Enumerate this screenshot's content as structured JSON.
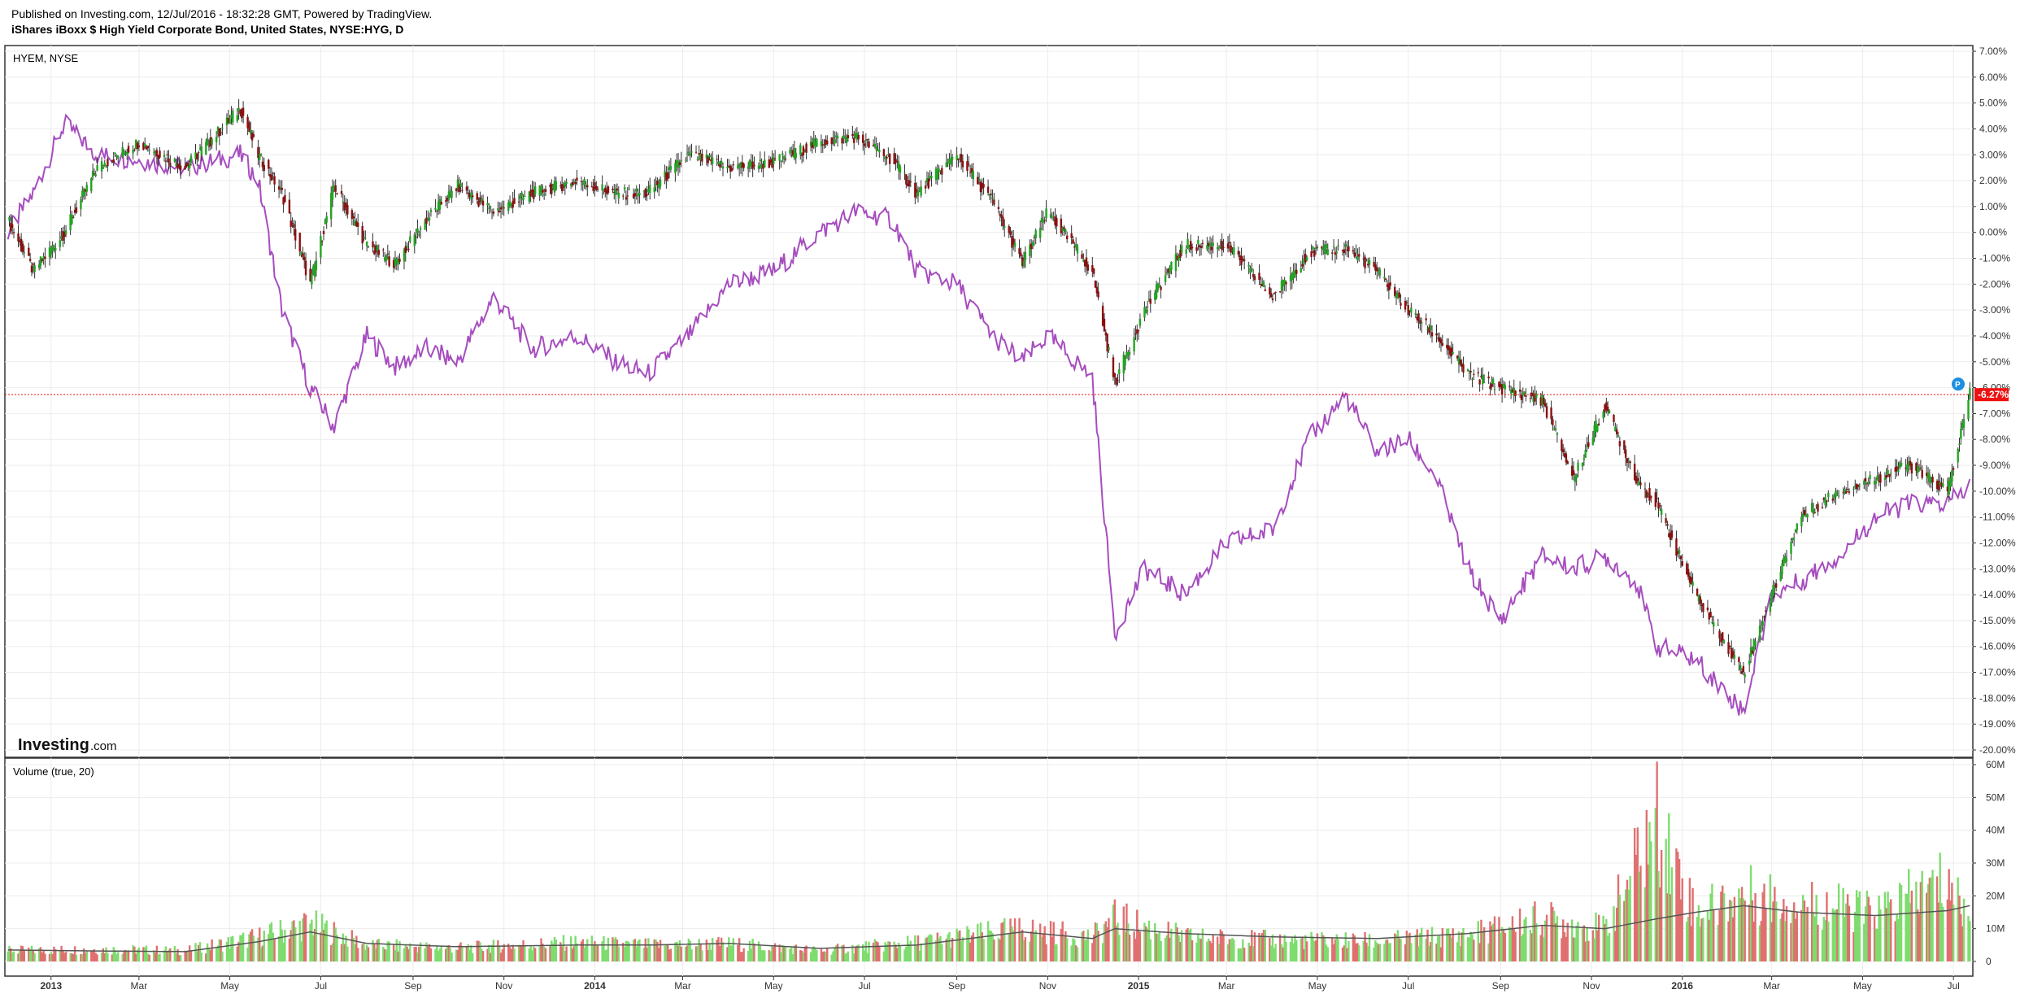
{
  "header": {
    "published": "Published on Investing.com, 12/Jul/2016 - 18:32:28 GMT, Powered by TradingView.",
    "symbol_title": "iShares iBoxx $ High Yield Corporate Bond, United States, NYSE:HYG, D"
  },
  "watermark": {
    "brand": "Investing",
    "suffix": ".com"
  },
  "price_pane": {
    "compare_label": "HYEM, NYSE",
    "last_value_label": "-6.27%",
    "flag_label": "P"
  },
  "volume_pane": {
    "label": "Volume (true, 20)"
  },
  "colors": {
    "up": "#21a521",
    "down": "#8b1010",
    "compare_line": "#a64dbf",
    "vol_up": "#7fdc6f",
    "vol_down": "#e07070",
    "vol_ma": "#555555",
    "last_marker": "#ee1111",
    "flag": "#1c8fe0"
  },
  "chart_data": [
    {
      "type": "line",
      "y_unit": "%",
      "ylim": [
        -20,
        7
      ],
      "y_ticks": [
        "7.00%",
        "6.00%",
        "5.00%",
        "4.00%",
        "3.00%",
        "2.00%",
        "1.00%",
        "0.00%",
        "-1.00%",
        "-2.00%",
        "-3.00%",
        "-4.00%",
        "-5.00%",
        "-6.00%",
        "-7.00%",
        "-8.00%",
        "-9.00%",
        "-10.00%",
        "-11.00%",
        "-12.00%",
        "-13.00%",
        "-14.00%",
        "-15.00%",
        "-16.00%",
        "-17.00%",
        "-18.00%",
        "-19.00%",
        "-20.00%"
      ],
      "x_ticks": [
        "2013",
        "Mar",
        "May",
        "Jul",
        "Sep",
        "Nov",
        "2014",
        "Mar",
        "May",
        "Jul",
        "Sep",
        "Nov",
        "2015",
        "Mar",
        "May",
        "Jul",
        "Sep",
        "Nov",
        "2016",
        "Mar",
        "May",
        "Jul"
      ],
      "grid": true,
      "series": [
        {
          "name": "NYSE:HYG",
          "style": "candlestick",
          "x": [
            "2012-12-03",
            "2012-12-20",
            "2013-01-10",
            "2013-02-01",
            "2013-03-01",
            "2013-04-01",
            "2013-05-08",
            "2013-05-20",
            "2013-06-05",
            "2013-06-24",
            "2013-07-10",
            "2013-08-01",
            "2013-08-20",
            "2013-09-10",
            "2013-10-01",
            "2013-10-25",
            "2013-11-20",
            "2013-12-20",
            "2014-01-15",
            "2014-02-05",
            "2014-03-05",
            "2014-04-01",
            "2014-05-01",
            "2014-06-01",
            "2014-06-25",
            "2014-07-20",
            "2014-08-05",
            "2014-09-01",
            "2014-09-25",
            "2014-10-15",
            "2014-11-01",
            "2014-12-01",
            "2014-12-16",
            "2015-01-05",
            "2015-02-01",
            "2015-03-01",
            "2015-04-01",
            "2015-04-25",
            "2015-05-20",
            "2015-06-10",
            "2015-07-01",
            "2015-07-20",
            "2015-08-10",
            "2015-09-01",
            "2015-09-29",
            "2015-10-20",
            "2015-11-10",
            "2015-12-01",
            "2015-12-15",
            "2016-01-10",
            "2016-02-11",
            "2016-03-01",
            "2016-03-20",
            "2016-04-15",
            "2016-05-10",
            "2016-06-01",
            "2016-06-27",
            "2016-07-12"
          ],
          "values": [
            0.5,
            -1.5,
            0.0,
            2.5,
            3.5,
            2.5,
            4.8,
            3.0,
            1.5,
            -2.0,
            1.8,
            -0.5,
            -1.2,
            0.5,
            1.8,
            0.8,
            1.5,
            2.0,
            1.5,
            1.5,
            3.0,
            2.5,
            2.7,
            3.5,
            3.7,
            2.8,
            1.5,
            3.0,
            1.2,
            -1.2,
            0.8,
            -1.5,
            -5.8,
            -3.0,
            -0.5,
            -0.5,
            -2.5,
            -0.8,
            -0.6,
            -1.5,
            -3.0,
            -4.0,
            -5.5,
            -6.0,
            -6.5,
            -9.5,
            -6.7,
            -9.5,
            -10.5,
            -14.0,
            -17.0,
            -14.0,
            -11.0,
            -10.0,
            -9.5,
            -9.0,
            -10.0,
            -6.27
          ]
        },
        {
          "name": "HYEM, NYSE",
          "style": "line",
          "x": [
            "2012-12-03",
            "2012-12-20",
            "2013-01-10",
            "2013-02-01",
            "2013-03-01",
            "2013-04-01",
            "2013-05-08",
            "2013-05-20",
            "2013-06-05",
            "2013-06-24",
            "2013-07-10",
            "2013-08-01",
            "2013-08-20",
            "2013-09-10",
            "2013-10-01",
            "2013-10-25",
            "2013-11-20",
            "2013-12-20",
            "2014-01-15",
            "2014-02-05",
            "2014-03-05",
            "2014-04-01",
            "2014-05-01",
            "2014-06-01",
            "2014-06-25",
            "2014-07-20",
            "2014-08-05",
            "2014-09-01",
            "2014-09-25",
            "2014-10-15",
            "2014-11-01",
            "2014-12-01",
            "2014-12-16",
            "2015-01-05",
            "2015-02-01",
            "2015-03-01",
            "2015-04-01",
            "2015-04-25",
            "2015-05-20",
            "2015-06-10",
            "2015-07-01",
            "2015-07-20",
            "2015-08-10",
            "2015-09-01",
            "2015-09-29",
            "2015-10-20",
            "2015-11-10",
            "2015-12-01",
            "2015-12-15",
            "2016-01-10",
            "2016-02-11",
            "2016-03-01",
            "2016-03-20",
            "2016-04-15",
            "2016-05-10",
            "2016-06-01",
            "2016-06-27",
            "2016-07-12"
          ],
          "values": [
            0.0,
            1.5,
            4.2,
            3.0,
            2.8,
            2.5,
            3.0,
            2.0,
            -3.0,
            -6.0,
            -7.5,
            -4.0,
            -5.2,
            -4.5,
            -5.0,
            -2.5,
            -4.5,
            -4.0,
            -5.0,
            -5.5,
            -4.0,
            -2.0,
            -1.5,
            0.0,
            0.8,
            0.5,
            -1.5,
            -2.0,
            -4.0,
            -5.0,
            -4.0,
            -5.6,
            -15.5,
            -13.0,
            -14.0,
            -12.0,
            -11.5,
            -8.0,
            -6.3,
            -8.5,
            -8.0,
            -9.5,
            -13.0,
            -15.0,
            -12.5,
            -13.0,
            -12.5,
            -13.5,
            -16.0,
            -16.5,
            -18.5,
            -14.0,
            -13.5,
            -12.5,
            -11.0,
            -10.5,
            -10.5,
            -9.8
          ]
        }
      ]
    },
    {
      "type": "bar",
      "y_unit": "shares",
      "ylim": [
        0,
        60000000
      ],
      "y_ticks": [
        "60M",
        "50M",
        "40M",
        "30M",
        "20M",
        "10M",
        "0"
      ],
      "x": [
        "2012-12-03",
        "2013-02-01",
        "2013-04-01",
        "2013-05-20",
        "2013-06-24",
        "2013-08-01",
        "2013-10-01",
        "2013-12-20",
        "2014-02-05",
        "2014-04-01",
        "2014-06-01",
        "2014-08-05",
        "2014-10-15",
        "2014-12-01",
        "2014-12-16",
        "2015-02-01",
        "2015-04-01",
        "2015-06-10",
        "2015-08-10",
        "2015-09-29",
        "2015-11-10",
        "2015-12-15",
        "2016-01-10",
        "2016-02-11",
        "2016-03-20",
        "2016-05-10",
        "2016-06-27",
        "2016-07-12"
      ],
      "series": [
        {
          "name": "Volume",
          "values": [
            4000000,
            4500000,
            4000000,
            9000000,
            14000000,
            6000000,
            5000000,
            7000000,
            6000000,
            6500000,
            4000000,
            7000000,
            12000000,
            9000000,
            16000000,
            9000000,
            8000000,
            7500000,
            10000000,
            16000000,
            12000000,
            52000000,
            18000000,
            25000000,
            22000000,
            18000000,
            30000000,
            15000000
          ]
        },
        {
          "name": "Volume MA",
          "values": [
            3500000,
            3200000,
            3000000,
            6000000,
            9000000,
            5500000,
            4500000,
            5000000,
            5000000,
            5500000,
            4000000,
            5000000,
            9000000,
            7000000,
            10000000,
            8500000,
            7500000,
            7000000,
            8500000,
            11000000,
            10000000,
            13000000,
            15000000,
            17000000,
            15000000,
            14000000,
            15500000,
            17000000
          ]
        }
      ]
    }
  ]
}
